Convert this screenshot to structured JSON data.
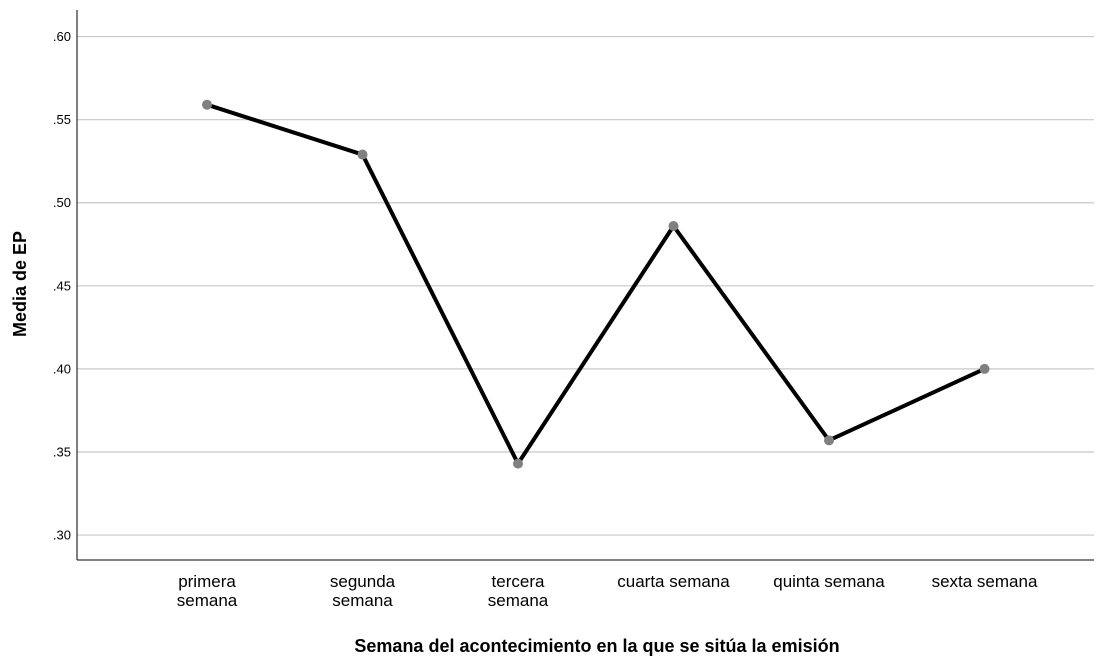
{
  "chart_data": {
    "type": "line",
    "title": "",
    "xlabel": "Semana del acontecimiento en la que se sitúa la emisión",
    "ylabel": "Media de EP",
    "categories": [
      [
        "primera",
        "semana"
      ],
      [
        "segunda",
        "semana"
      ],
      [
        "tercera",
        "semana"
      ],
      [
        "cuarta semana"
      ],
      [
        "quinta semana"
      ],
      [
        "sexta semana"
      ]
    ],
    "series": [
      {
        "values": [
          0.559,
          0.529,
          0.343,
          0.486,
          0.357,
          0.4
        ]
      }
    ],
    "ylim": [
      0.285,
      0.616
    ],
    "yticks": [
      0.3,
      0.35,
      0.4,
      0.45,
      0.5,
      0.55,
      0.6
    ],
    "ytick_labels": [
      ".30",
      ".35",
      ".40",
      ".45",
      ".50",
      ".55",
      ".60"
    ],
    "grid": true,
    "colors": {
      "line": "#000000",
      "marker": "#808080",
      "grid": "#c8c8c8"
    }
  }
}
